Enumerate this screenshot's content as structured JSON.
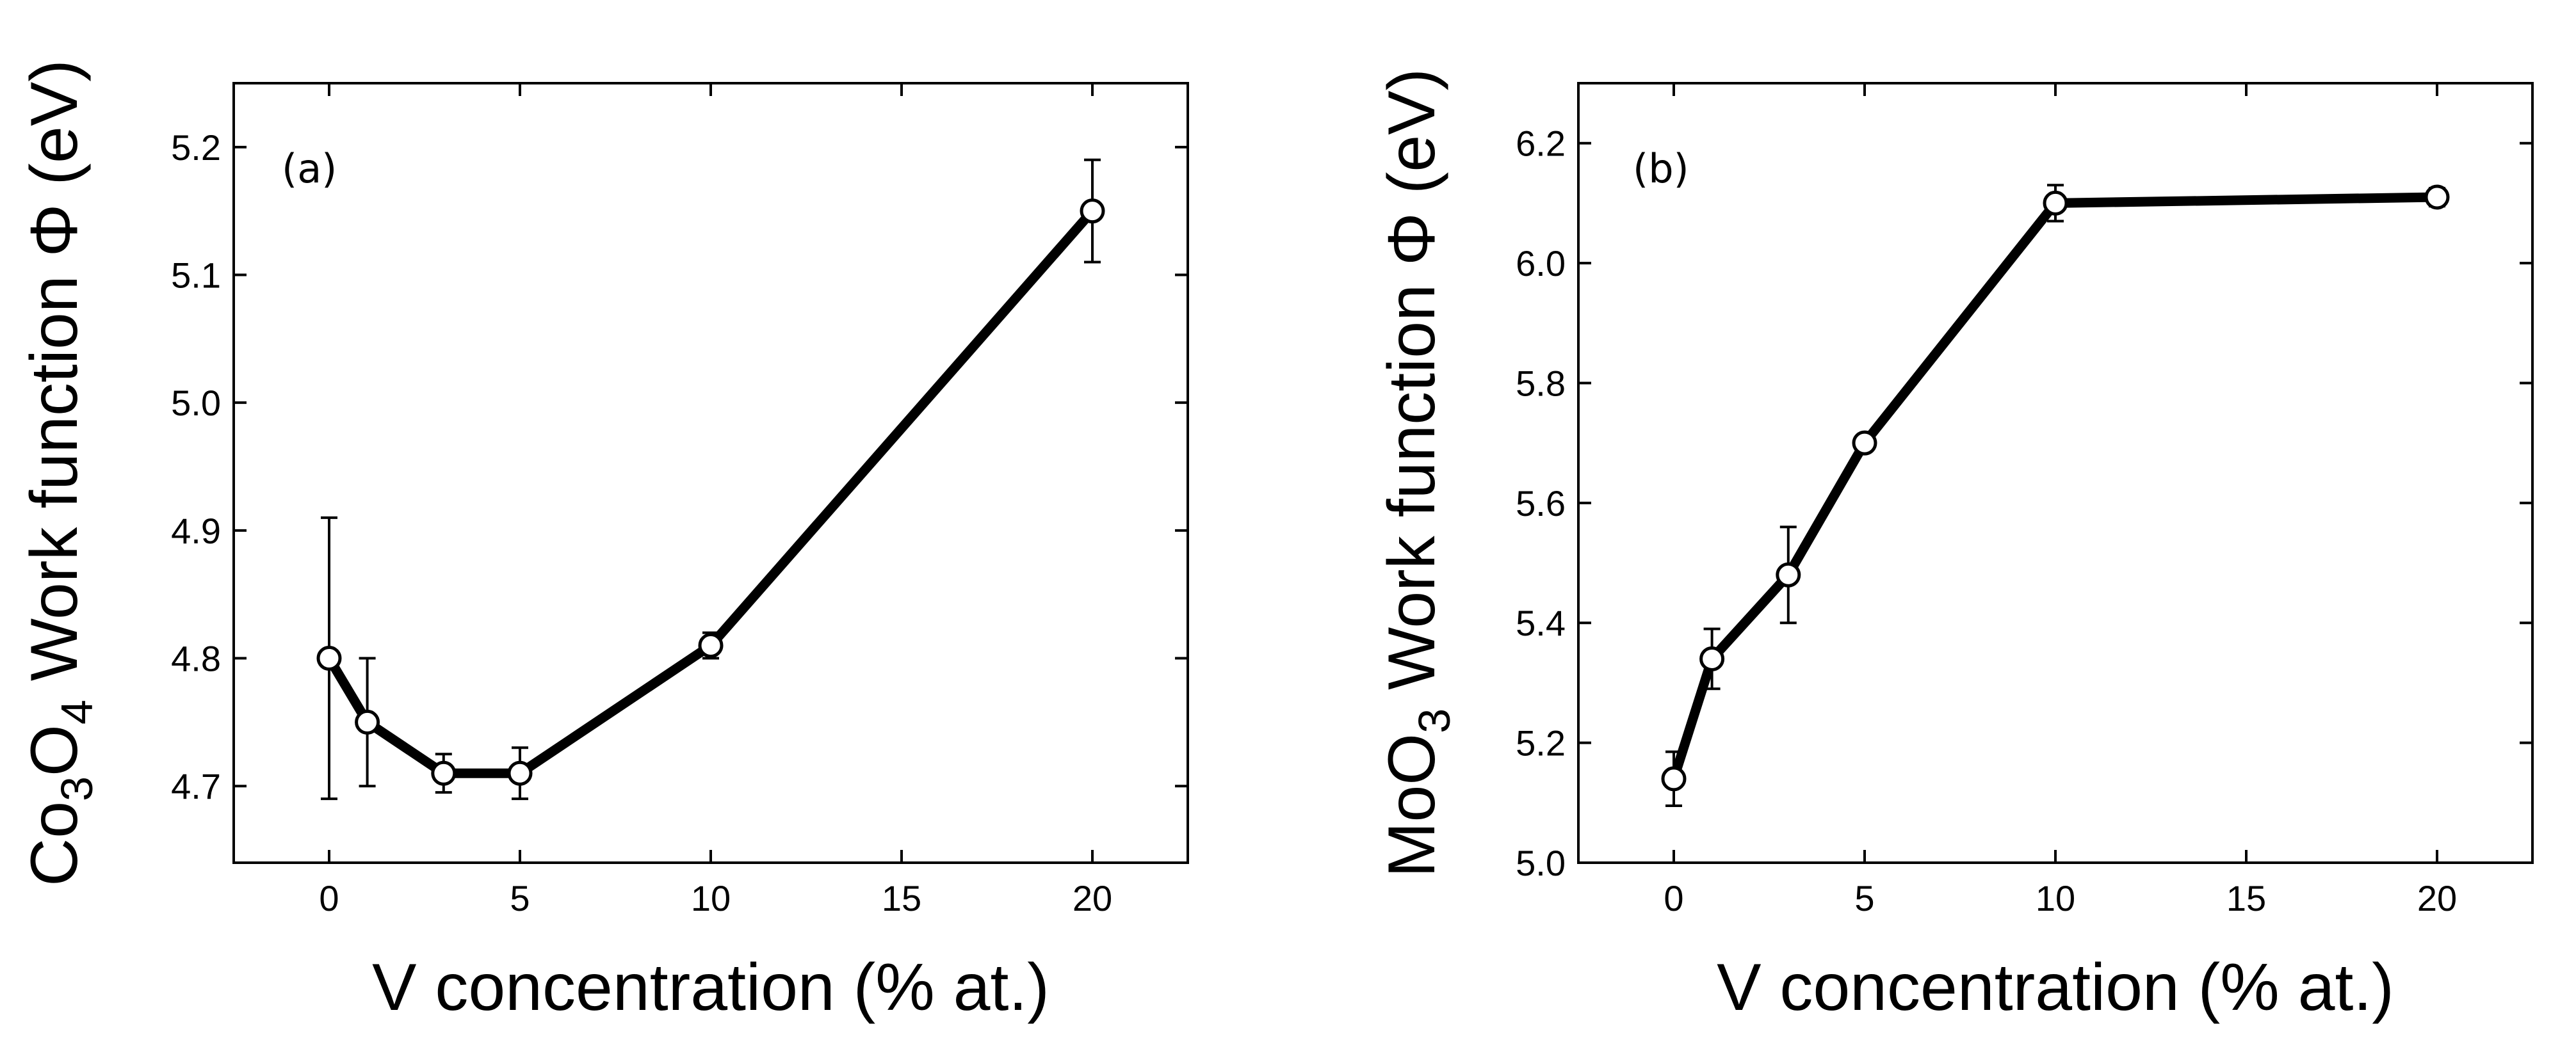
{
  "chart_data": [
    {
      "type": "line",
      "panel_label": "(a)",
      "xlabel": "V concentration (% at.)",
      "ylabel": {
        "prefix": "Co",
        "sub1": "3",
        "mid": "O",
        "sub2": "4",
        "suffix": " Work function Φ (eV)"
      },
      "xlim": [
        -2.5,
        22.5
      ],
      "ylim": [
        4.64,
        5.25
      ],
      "xticks": [
        0,
        5,
        10,
        15,
        20
      ],
      "yticks": [
        4.7,
        4.8,
        4.9,
        5.0,
        5.1,
        5.2
      ],
      "ytick_decimals": 1,
      "series": [
        {
          "name": "Co3O4",
          "x": [
            0,
            1,
            3,
            5,
            10,
            20
          ],
          "y": [
            4.8,
            4.75,
            4.71,
            4.71,
            4.81,
            5.15
          ],
          "err": [
            0.11,
            0.05,
            0.015,
            0.02,
            0.01,
            0.04
          ]
        }
      ]
    },
    {
      "type": "line",
      "panel_label": "(b)",
      "xlabel": "V concentration (% at.)",
      "ylabel": {
        "prefix": "MoO",
        "sub1": "3",
        "mid": "",
        "sub2": "",
        "suffix": " Work function Φ (eV)"
      },
      "xlim": [
        -2.5,
        22.5
      ],
      "ylim": [
        5.0,
        6.3
      ],
      "xticks": [
        0,
        5,
        10,
        15,
        20
      ],
      "yticks": [
        5.0,
        5.2,
        5.4,
        5.6,
        5.8,
        6.0,
        6.2
      ],
      "ytick_decimals": 1,
      "series": [
        {
          "name": "MoO3",
          "x": [
            0,
            1,
            3,
            5,
            10,
            20
          ],
          "y": [
            5.14,
            5.34,
            5.48,
            5.7,
            6.1,
            6.11
          ],
          "err": [
            0.045,
            0.05,
            0.08,
            0.012,
            0.03,
            0.015
          ]
        }
      ]
    }
  ]
}
